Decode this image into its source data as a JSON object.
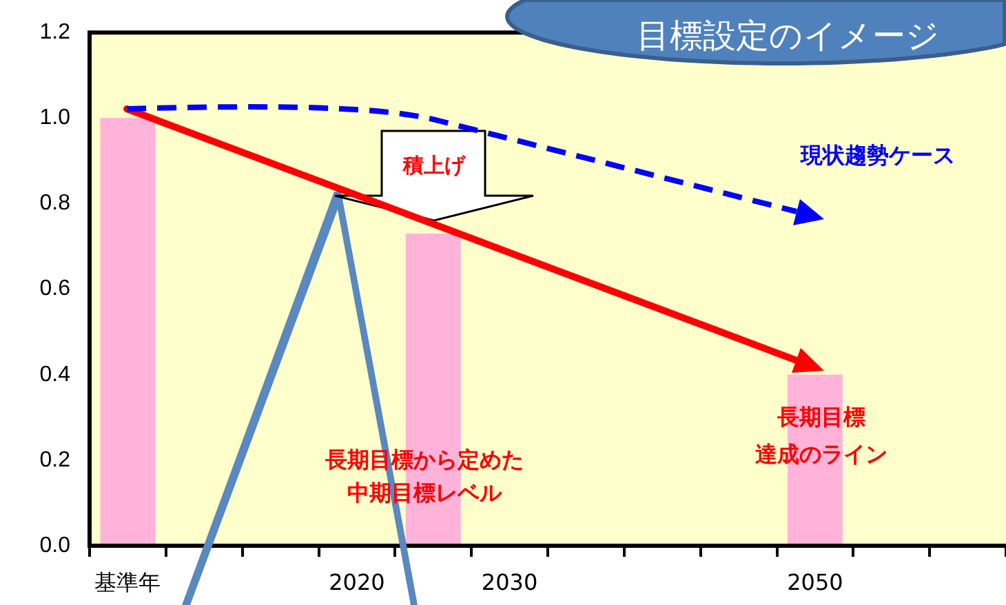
{
  "chart_data": {
    "type": "bar",
    "title": "目標設定のイメージ",
    "categories": [
      "基準年",
      null,
      null,
      "2020",
      null,
      "2030",
      null,
      null,
      null,
      "2050",
      null,
      null
    ],
    "color": "#ffb3d9",
    "values": [
      1.0,
      null,
      null,
      null,
      0.73,
      null,
      null,
      null,
      null,
      0.4,
      null,
      null
    ],
    "ylim": [
      0,
      1.2
    ],
    "yticks": [
      {
        "value": 0,
        "label": "0.0"
      },
      {
        "value": 0.2,
        "label": "0.2"
      },
      {
        "value": 0.4,
        "label": "0.4"
      },
      {
        "value": 0.6,
        "label": "0.6"
      },
      {
        "value": 0.8,
        "label": "0.8"
      },
      {
        "value": 1.0,
        "label": "1.0"
      },
      {
        "value": 1.2,
        "label": "1.2"
      }
    ],
    "grid": false,
    "legend": false,
    "annotations": [
      "積上げ",
      "現状趨勢ケース",
      "長期目標から定めた中期目標レベル",
      "長期目標",
      "達成のライン"
    ]
  }
}
